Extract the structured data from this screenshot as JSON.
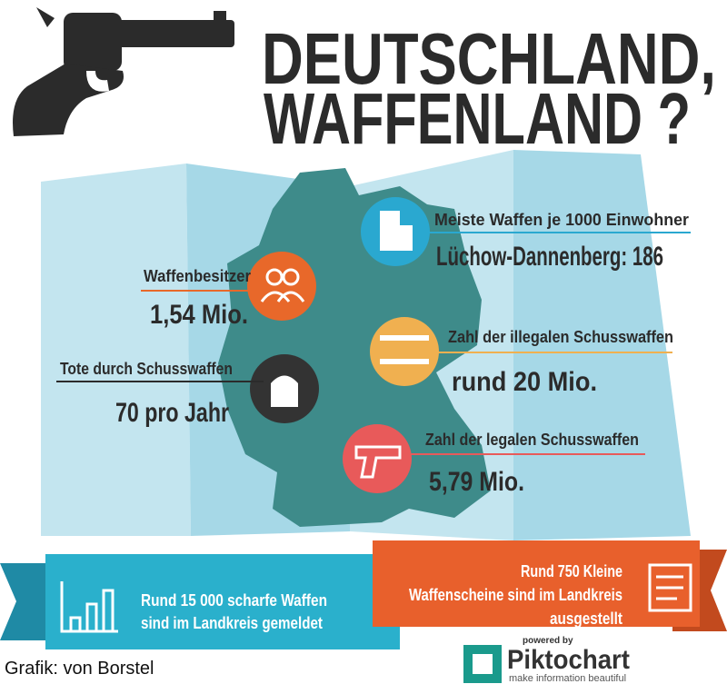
{
  "header": {
    "title_line1": "DEUTSCHLAND,",
    "title_line2": "WAFFENLAND ?"
  },
  "facts": [
    {
      "label": "Meiste Waffen je 1000 Einwohner",
      "value": "Lüchow-Dannenberg: 186"
    },
    {
      "label": "Waffenbesitzer",
      "value": "1,54 Mio."
    },
    {
      "label": "Zahl der illegalen Schusswaffen",
      "value": "rund  20 Mio."
    },
    {
      "label": "Tote durch Schusswaffen",
      "value": "70 pro Jahr"
    },
    {
      "label": "Zahl der legalen Schusswaffen",
      "value": "5,79 Mio."
    }
  ],
  "banners": {
    "left": [
      "Rund  15 000 scharfe Waffen",
      "sind im Landkreis gemeldet"
    ],
    "right": [
      "Rund 750 Kleine",
      "Waffenscheine sind im Landkreis",
      "ausgestellt"
    ]
  },
  "footer": {
    "credit": "Grafik: von Borstel",
    "powered_by": "powered by",
    "brand": "Piktochart",
    "tagline": "make information beautiful"
  }
}
